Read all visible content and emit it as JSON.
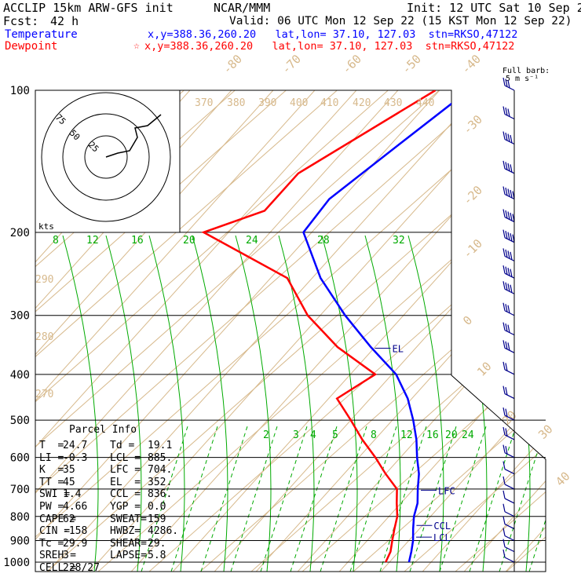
{
  "header": {
    "model": "ACCLIP 15km ARW-GFS init",
    "source": "NCAR/MMM",
    "init": "Init: 12 UTC Sat 10 Sep 22",
    "fcst_label": "Fcst:",
    "fcst_value": "42 h",
    "valid": "Valid: 06 UTC Mon 12 Sep 22 (15 KST Mon 12 Sep 22)",
    "temperature_label": "Temperature",
    "temperature_loc": "x,y=388.36,260.20   lat,lon= 37.10, 127.03  stn=RKSO,47122",
    "dewpoint_label": "Dewpoint",
    "dewpoint_loc": "x,y=388.36,260.20   lat,lon= 37.10, 127.03  stn=RKSO,47122",
    "dewpoint_star": "☆",
    "barb_label_1": "Full barb:",
    "barb_label_2": "5 m s⁻¹"
  },
  "colors": {
    "temperature": "#0000ff",
    "dewpoint": "#ff0000",
    "isotherm": "#d7b98c",
    "mixing": "#00aa00",
    "text_green": "#00aa00"
  },
  "hodograph": {
    "rings": [
      "25",
      "50",
      "75"
    ],
    "unit": "kts"
  },
  "parcel_info": {
    "title": "Parcel Info",
    "rows": [
      [
        "T  =",
        "24.7",
        "Td =",
        "19.1"
      ],
      [
        "LI =",
        "-0.3",
        "LCL =",
        "885."
      ],
      [
        "K  =",
        "35",
        "LFC =",
        "704."
      ],
      [
        "TT =",
        "45",
        "EL  =",
        "352."
      ],
      [
        "SWI =",
        "1.4",
        "CCL =",
        "836."
      ],
      [
        "PW =",
        "4.66",
        "YGP =",
        "0.0"
      ],
      [
        "CAPE =",
        "62",
        "SWEAT=",
        "159"
      ],
      [
        "CIN =",
        "-158",
        "HWBZ=",
        "4286."
      ],
      [
        "Tc =",
        "29.9",
        "SHEAR=",
        "29."
      ],
      [
        "SREH =",
        "3",
        "LAPSE=",
        "5.8"
      ],
      [
        "CELL =",
        "228/27",
        "",
        ""
      ]
    ]
  },
  "chart_data": {
    "type": "line",
    "chart": "skew-T log-P sounding",
    "pressure_levels": [
      "100",
      "200",
      "300",
      "400",
      "500",
      "600",
      "700",
      "800",
      "900",
      "1000"
    ],
    "isotherm_labels": [
      "-80",
      "-70",
      "-60",
      "-50",
      "-40",
      "-30",
      "-20",
      "-10",
      "0",
      "10",
      "20",
      "30",
      "40"
    ],
    "theta_labels": [
      "370",
      "380",
      "390",
      "400",
      "410",
      "420",
      "430",
      "440",
      "290",
      "280",
      "270"
    ],
    "mixing_ratio_labels_upper": [
      "8",
      "12",
      "16",
      "20",
      "24",
      "28",
      "32"
    ],
    "mixing_ratio_labels_lower": [
      "2",
      "3",
      "4",
      "5",
      "8",
      "12",
      "16",
      "20",
      "24"
    ],
    "levels_marked": [
      {
        "label": "EL",
        "p": 352
      },
      {
        "label": "LFC",
        "p": 704
      },
      {
        "label": "CCL",
        "p": 836
      },
      {
        "label": "LCL",
        "p": 885
      }
    ],
    "series": [
      {
        "name": "Temperature",
        "color": "#0000ff",
        "points": [
          [
            100,
            -63
          ],
          [
            130,
            -68
          ],
          [
            170,
            -73
          ],
          [
            200,
            -72
          ],
          [
            250,
            -58
          ],
          [
            300,
            -44
          ],
          [
            350,
            -31
          ],
          [
            400,
            -19
          ],
          [
            450,
            -11
          ],
          [
            500,
            -5
          ],
          [
            550,
            0
          ],
          [
            600,
            4
          ],
          [
            650,
            8
          ],
          [
            700,
            11
          ],
          [
            750,
            14
          ],
          [
            800,
            16
          ],
          [
            850,
            18.5
          ],
          [
            900,
            21
          ],
          [
            950,
            23
          ],
          [
            1000,
            24.7
          ]
        ]
      },
      {
        "name": "Dewpoint",
        "color": "#ff0000",
        "points": [
          [
            100,
            -71
          ],
          [
            150,
            -86
          ],
          [
            180,
            -86
          ],
          [
            200,
            -96
          ],
          [
            250,
            -66
          ],
          [
            300,
            -53
          ],
          [
            350,
            -39
          ],
          [
            400,
            -24
          ],
          [
            450,
            -28
          ],
          [
            500,
            -20
          ],
          [
            550,
            -13
          ],
          [
            600,
            -6
          ],
          [
            650,
            0
          ],
          [
            700,
            6
          ],
          [
            750,
            9
          ],
          [
            800,
            12
          ],
          [
            850,
            14
          ],
          [
            900,
            16
          ],
          [
            950,
            18
          ],
          [
            1000,
            19.1
          ]
        ]
      }
    ],
    "wind_barbs": [
      {
        "p": 100,
        "spd": 15
      },
      {
        "p": 115,
        "spd": 15
      },
      {
        "p": 130,
        "spd": 20
      },
      {
        "p": 150,
        "spd": 20
      },
      {
        "p": 170,
        "spd": 25
      },
      {
        "p": 190,
        "spd": 25
      },
      {
        "p": 210,
        "spd": 25
      },
      {
        "p": 230,
        "spd": 20
      },
      {
        "p": 250,
        "spd": 20
      },
      {
        "p": 270,
        "spd": 20
      },
      {
        "p": 300,
        "spd": 15
      },
      {
        "p": 330,
        "spd": 15
      },
      {
        "p": 360,
        "spd": 15
      },
      {
        "p": 400,
        "spd": 10
      },
      {
        "p": 450,
        "spd": 10
      },
      {
        "p": 500,
        "spd": 10
      },
      {
        "p": 550,
        "spd": 10
      },
      {
        "p": 600,
        "spd": 10
      },
      {
        "p": 650,
        "spd": 5
      },
      {
        "p": 700,
        "spd": 5
      },
      {
        "p": 750,
        "spd": 5
      },
      {
        "p": 800,
        "spd": 5
      },
      {
        "p": 850,
        "spd": 5
      },
      {
        "p": 900,
        "spd": 5
      },
      {
        "p": 950,
        "spd": 5
      },
      {
        "p": 1000,
        "spd": 5
      }
    ]
  }
}
